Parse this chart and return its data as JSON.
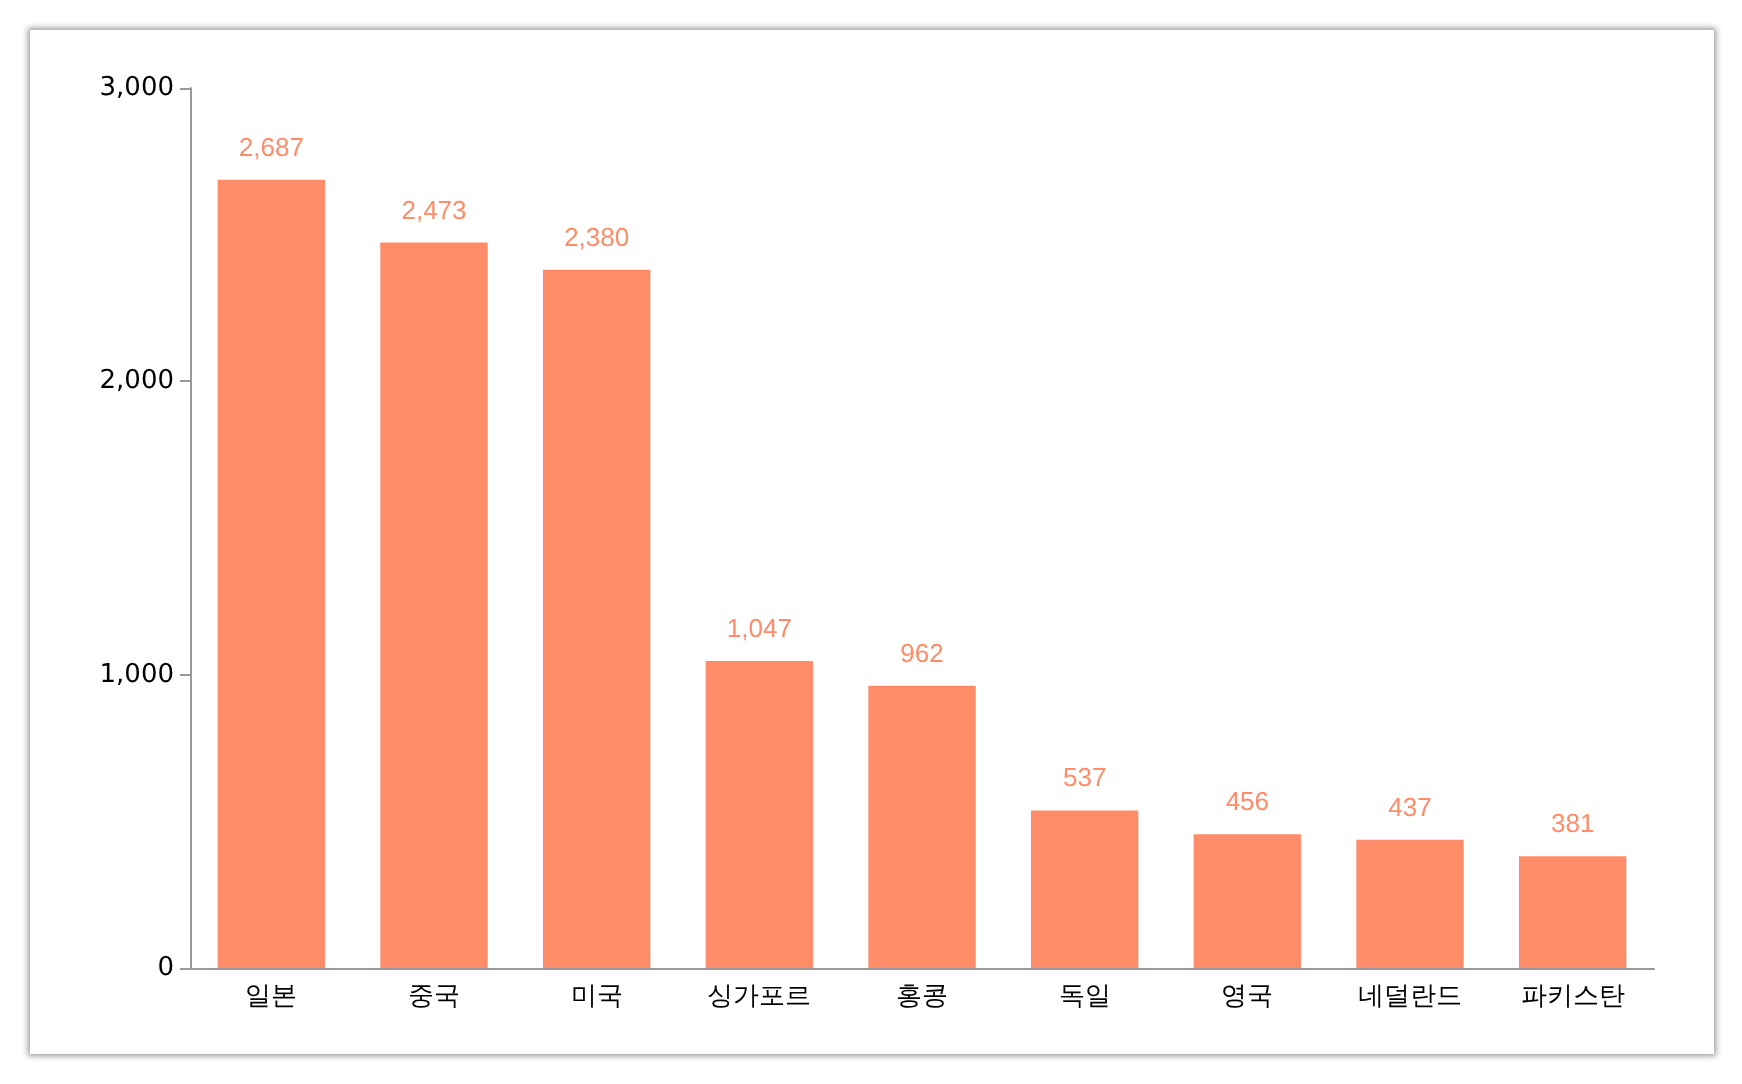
{
  "chart_data": {
    "type": "bar",
    "categories": [
      "일본",
      "중국",
      "미국",
      "싱가포르",
      "홍콩",
      "독일",
      "영국",
      "네덜란드",
      "파키스탄"
    ],
    "values": [
      2687,
      2473,
      2380,
      1047,
      962,
      537,
      456,
      437,
      381
    ],
    "color": "#ff8c69",
    "ylim": [
      0,
      3000
    ],
    "yticks": [
      0,
      {
        "value": 1000,
        "label": "1,000"
      },
      {
        "value": 2000,
        "label": "2,000"
      },
      {
        "value": 3000,
        "label": "3,000"
      }
    ],
    "grid": false,
    "value_labels": [
      "2,687",
      "2,473",
      "2,380",
      "1,047",
      "962",
      "537",
      "456",
      "437",
      "381"
    ]
  }
}
